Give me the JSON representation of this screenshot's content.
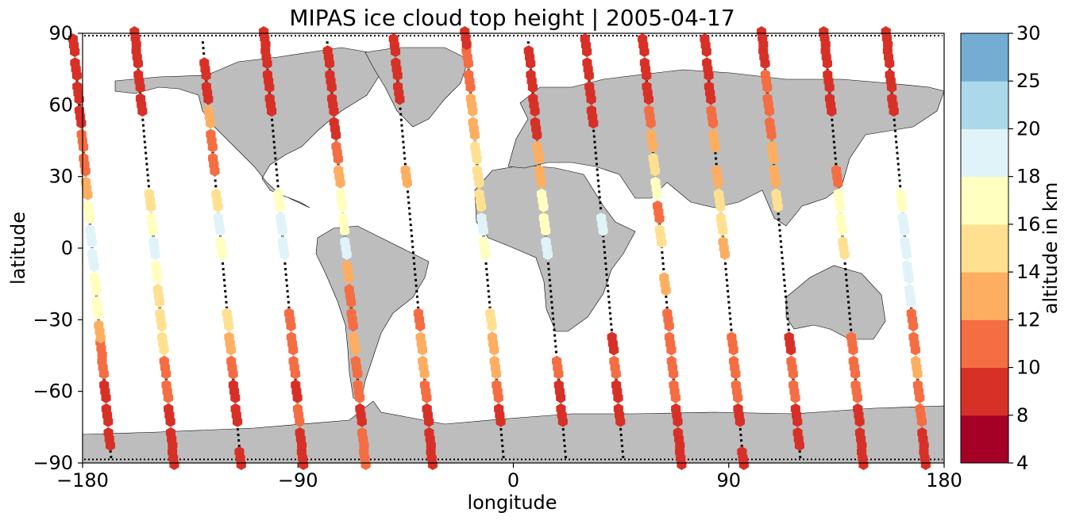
{
  "chart_data": {
    "type": "scatter",
    "title": "MIPAS ice cloud top height | 2005-04-17",
    "xlabel": "longitude",
    "ylabel": "latitude",
    "xlim": [
      -180,
      180
    ],
    "ylim": [
      -90,
      90
    ],
    "xticks": [
      -180,
      -90,
      0,
      90,
      180
    ],
    "yticks": [
      90,
      60,
      30,
      0,
      -30,
      -60,
      -90
    ],
    "xtick_labels": [
      "−180",
      "−90",
      "0",
      "90",
      "180"
    ],
    "ytick_labels": [
      "90",
      "60",
      "30",
      "0",
      "−30",
      "−60",
      "−90"
    ],
    "colorbar": {
      "label": "altitude in km",
      "bounds": [
        4,
        8,
        10,
        12,
        14,
        16,
        18,
        20,
        25,
        30
      ],
      "tick_labels": [
        "4",
        "8",
        "10",
        "12",
        "14",
        "16",
        "18",
        "20",
        "25",
        "30"
      ],
      "colors": [
        "#a50026",
        "#d73027",
        "#f46d43",
        "#fdae61",
        "#fee090",
        "#ffffbf",
        "#e0f3f8",
        "#abd9e9",
        "#74add1",
        "#4575b4",
        "#313695"
      ]
    },
    "land_color": "#bdbdbd",
    "track_color": "#000000",
    "tracks": [
      {
        "lon": -176,
        "lat": [
          [
            -88,
            "d"
          ],
          [
            -80,
            8
          ],
          [
            -70,
            8
          ],
          [
            -60,
            9
          ],
          [
            -50,
            10
          ],
          [
            -42,
            11
          ],
          [
            -35,
            12
          ],
          [
            -25,
            16
          ],
          [
            -15,
            17
          ],
          [
            -5,
            18
          ],
          [
            5,
            18
          ],
          [
            15,
            16
          ],
          [
            25,
            12
          ],
          [
            35,
            11
          ],
          [
            45,
            10
          ],
          [
            55,
            9
          ],
          [
            65,
            8
          ],
          [
            75,
            8
          ],
          [
            85,
            8
          ]
        ]
      },
      {
        "lon": -150,
        "lat": [
          [
            -88,
            8
          ],
          [
            -80,
            8
          ],
          [
            -70,
            8
          ],
          [
            -60,
            10
          ],
          [
            -50,
            11
          ],
          [
            -40,
            14
          ],
          [
            -30,
            15
          ],
          [
            -20,
            15
          ],
          [
            -10,
            17
          ],
          [
            0,
            18
          ],
          [
            10,
            16
          ],
          [
            20,
            15
          ],
          [
            35,
            "d"
          ],
          [
            50,
            "d"
          ],
          [
            60,
            8
          ],
          [
            70,
            8
          ],
          [
            80,
            8
          ],
          [
            88,
            8
          ]
        ]
      },
      {
        "lon": -122,
        "lat": [
          [
            -88,
            8
          ],
          [
            -80,
            "d"
          ],
          [
            -70,
            8
          ],
          [
            -60,
            9
          ],
          [
            -50,
            11
          ],
          [
            -40,
            13
          ],
          [
            -30,
            14
          ],
          [
            -20,
            "d"
          ],
          [
            -10,
            "d"
          ],
          [
            0,
            17
          ],
          [
            10,
            18
          ],
          [
            20,
            14
          ],
          [
            35,
            11
          ],
          [
            45,
            11
          ],
          [
            55,
            12
          ],
          [
            65,
            8
          ],
          [
            75,
            8
          ]
        ]
      },
      {
        "lon": -96,
        "lat": [
          [
            -88,
            8
          ],
          [
            -80,
            9
          ],
          [
            -70,
            10
          ],
          [
            -60,
            9
          ],
          [
            -50,
            10
          ],
          [
            -40,
            11
          ],
          [
            -30,
            10
          ],
          [
            -20,
            "d"
          ],
          [
            -10,
            "d"
          ],
          [
            0,
            18
          ],
          [
            10,
            18
          ],
          [
            20,
            17
          ],
          [
            35,
            "d"
          ],
          [
            50,
            "d"
          ],
          [
            60,
            8
          ],
          [
            70,
            9
          ],
          [
            80,
            9
          ],
          [
            88,
            8
          ]
        ]
      },
      {
        "lon": -70,
        "lat": [
          [
            -88,
            11
          ],
          [
            -80,
            10
          ],
          [
            -70,
            9
          ],
          [
            -60,
            10
          ],
          [
            -50,
            10
          ],
          [
            -40,
            12
          ],
          [
            -30,
            11
          ],
          [
            -20,
            11
          ],
          [
            -10,
            13
          ],
          [
            0,
            18
          ],
          [
            10,
            17
          ],
          [
            20,
            17
          ],
          [
            30,
            12
          ],
          [
            40,
            11
          ],
          [
            50,
            9
          ],
          [
            60,
            9
          ],
          [
            70,
            8
          ],
          [
            80,
            8
          ]
        ]
      },
      {
        "lon": -42,
        "lat": [
          [
            -88,
            9
          ],
          [
            -80,
            9
          ],
          [
            -70,
            8
          ],
          [
            -60,
            11
          ],
          [
            -50,
            13
          ],
          [
            -40,
            12
          ],
          [
            -30,
            11
          ],
          [
            30,
            13
          ],
          [
            35,
            "d"
          ],
          [
            50,
            "d"
          ],
          [
            65,
            9
          ],
          [
            75,
            8
          ],
          [
            85,
            9
          ]
        ]
      },
      {
        "lon": -12,
        "lat": [
          [
            -88,
            "d"
          ],
          [
            -80,
            "d"
          ],
          [
            -70,
            8
          ],
          [
            -60,
            10
          ],
          [
            -50,
            12
          ],
          [
            -40,
            13
          ],
          [
            -30,
            14
          ],
          [
            -20,
            "d"
          ],
          [
            0,
            17
          ],
          [
            10,
            18
          ],
          [
            20,
            15
          ],
          [
            30,
            14
          ],
          [
            40,
            14
          ],
          [
            50,
            13
          ],
          [
            60,
            12
          ],
          [
            70,
            11
          ],
          [
            80,
            10
          ],
          [
            88,
            9
          ]
        ]
      },
      {
        "lon": 14,
        "lat": [
          [
            -88,
            "d"
          ],
          [
            -80,
            "d"
          ],
          [
            -70,
            8
          ],
          [
            -60,
            9
          ],
          [
            -50,
            10
          ],
          [
            -40,
            "d"
          ],
          [
            0,
            18
          ],
          [
            10,
            17
          ],
          [
            20,
            16
          ],
          [
            30,
            13
          ],
          [
            40,
            12
          ],
          [
            50,
            9
          ],
          [
            60,
            9
          ],
          [
            70,
            8
          ],
          [
            80,
            8
          ]
        ]
      },
      {
        "lon": 38,
        "lat": [
          [
            -88,
            "d"
          ],
          [
            -80,
            "d"
          ],
          [
            -70,
            8
          ],
          [
            -60,
            9
          ],
          [
            -50,
            10
          ],
          [
            -40,
            8
          ],
          [
            -30,
            "d"
          ],
          [
            0,
            "d"
          ],
          [
            10,
            18
          ],
          [
            20,
            "d"
          ],
          [
            40,
            "d"
          ],
          [
            55,
            8
          ],
          [
            65,
            8
          ],
          [
            75,
            8
          ],
          [
            85,
            8
          ]
        ]
      },
      {
        "lon": 62,
        "lat": [
          [
            -88,
            8
          ],
          [
            -80,
            8
          ],
          [
            -70,
            9
          ],
          [
            -60,
            10
          ],
          [
            -50,
            11
          ],
          [
            -40,
            11
          ],
          [
            -30,
            10
          ],
          [
            -15,
            13
          ],
          [
            5,
            14
          ],
          [
            15,
            11
          ],
          [
            25,
            16
          ],
          [
            35,
            14
          ],
          [
            45,
            12
          ],
          [
            55,
            11
          ],
          [
            65,
            9
          ],
          [
            75,
            8
          ],
          [
            85,
            8
          ]
        ]
      },
      {
        "lon": 88,
        "lat": [
          [
            -88,
            8
          ],
          [
            -80,
            "d"
          ],
          [
            -70,
            8
          ],
          [
            -60,
            10
          ],
          [
            -50,
            11
          ],
          [
            -40,
            10
          ],
          [
            -30,
            "d"
          ],
          [
            0,
            13
          ],
          [
            10,
            14
          ],
          [
            20,
            14
          ],
          [
            30,
            13
          ],
          [
            45,
            12
          ],
          [
            55,
            11
          ],
          [
            65,
            9
          ],
          [
            75,
            8
          ],
          [
            85,
            8
          ]
        ]
      },
      {
        "lon": 112,
        "lat": [
          [
            -88,
            "d"
          ],
          [
            -80,
            8
          ],
          [
            -70,
            9
          ],
          [
            -60,
            10
          ],
          [
            -50,
            11
          ],
          [
            -40,
            9
          ],
          [
            -30,
            "d"
          ],
          [
            20,
            14
          ],
          [
            30,
            13
          ],
          [
            40,
            12
          ],
          [
            50,
            11
          ],
          [
            60,
            11
          ],
          [
            70,
            10
          ],
          [
            80,
            9
          ],
          [
            88,
            8
          ]
        ]
      },
      {
        "lon": 138,
        "lat": [
          [
            -88,
            8
          ],
          [
            -80,
            9
          ],
          [
            -70,
            8
          ],
          [
            -60,
            10
          ],
          [
            -50,
            11
          ],
          [
            -40,
            11
          ],
          [
            -30,
            "d"
          ],
          [
            0,
            14
          ],
          [
            10,
            16
          ],
          [
            20,
            17
          ],
          [
            30,
            11
          ],
          [
            45,
            "d"
          ],
          [
            60,
            8
          ],
          [
            70,
            8
          ],
          [
            80,
            8
          ],
          [
            88,
            8
          ]
        ]
      },
      {
        "lon": 164,
        "lat": [
          [
            -88,
            8
          ],
          [
            -80,
            9
          ],
          [
            -70,
            10
          ],
          [
            -60,
            11
          ],
          [
            -50,
            12
          ],
          [
            -40,
            11
          ],
          [
            -30,
            11
          ],
          [
            -20,
            18
          ],
          [
            -10,
            18
          ],
          [
            0,
            18
          ],
          [
            10,
            18
          ],
          [
            20,
            17
          ],
          [
            35,
            "d"
          ],
          [
            50,
            "d"
          ],
          [
            60,
            8
          ],
          [
            70,
            8
          ],
          [
            80,
            8
          ],
          [
            88,
            8
          ]
        ]
      }
    ]
  }
}
